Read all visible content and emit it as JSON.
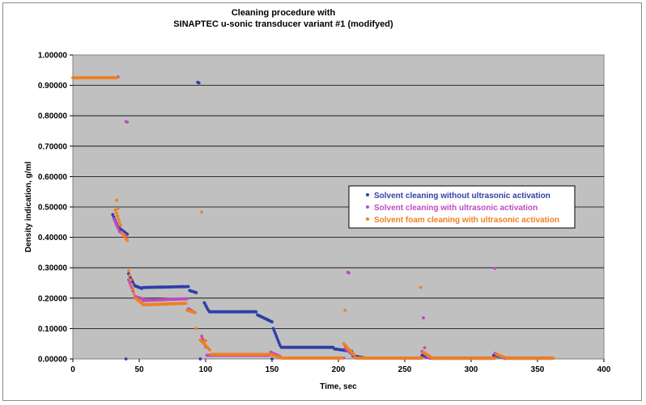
{
  "chart_data": {
    "type": "scatter",
    "title": [
      "Cleaning procedure with",
      "SINAPTEC u-sonic transducer variant #1 (modifyed)"
    ],
    "xlabel": "Time, sec",
    "ylabel": "Density indication, g/ml",
    "xlim": [
      0,
      400
    ],
    "ylim": [
      0,
      1
    ],
    "x_ticks": [
      "0",
      "50",
      "100",
      "150",
      "200",
      "250",
      "300",
      "350",
      "400"
    ],
    "y_ticks": [
      "0.00000",
      "0.10000",
      "0.20000",
      "0.30000",
      "0.40000",
      "0.50000",
      "0.60000",
      "0.70000",
      "0.80000",
      "0.90000",
      "1.00000"
    ],
    "grid": "horizontal",
    "plot_background": "#c0c0c0",
    "legend_position": "right",
    "series": [
      {
        "name": "Solvent cleaning without ultrasonic activation",
        "color": "#2e3fa8",
        "segments": [
          {
            "x0": 30,
            "x1": 34,
            "y0": 0.475,
            "y1": 0.435
          },
          {
            "x0": 35,
            "x1": 41,
            "y0": 0.43,
            "y1": 0.41
          },
          {
            "x0": 42,
            "x1": 46,
            "y0": 0.28,
            "y1": 0.245
          },
          {
            "x0": 47,
            "x1": 52,
            "y0": 0.24,
            "y1": 0.232
          },
          {
            "x0": 53,
            "x1": 87,
            "y0": 0.235,
            "y1": 0.238
          },
          {
            "x0": 88,
            "x1": 93,
            "y0": 0.225,
            "y1": 0.218
          },
          {
            "x0": 99,
            "x1": 102,
            "y0": 0.185,
            "y1": 0.16
          },
          {
            "x0": 103,
            "x1": 138,
            "y0": 0.155,
            "y1": 0.155
          },
          {
            "x0": 139,
            "x1": 150,
            "y0": 0.145,
            "y1": 0.122
          },
          {
            "x0": 151,
            "x1": 156,
            "y0": 0.1,
            "y1": 0.045
          },
          {
            "x0": 157,
            "x1": 196,
            "y0": 0.038,
            "y1": 0.038
          },
          {
            "x0": 197,
            "x1": 210,
            "y0": 0.033,
            "y1": 0.025
          },
          {
            "x0": 211,
            "x1": 220,
            "y0": 0.01,
            "y1": 0.003
          },
          {
            "x0": 221,
            "x1": 262,
            "y0": 0.003,
            "y1": 0.003
          },
          {
            "x0": 263,
            "x1": 269,
            "y0": 0.012,
            "y1": 0.003
          },
          {
            "x0": 270,
            "x1": 316,
            "y0": 0.002,
            "y1": 0.002
          },
          {
            "x0": 317,
            "x1": 325,
            "y0": 0.012,
            "y1": 0.004
          },
          {
            "x0": 326,
            "x1": 360,
            "y0": 0.002,
            "y1": 0.002
          }
        ],
        "points": [
          [
            94,
            0.91
          ],
          [
            95,
            0.908
          ],
          [
            40,
            0.0
          ],
          [
            96,
            0.0
          ],
          [
            150,
            0.0
          ]
        ]
      },
      {
        "name": "Solvent cleaning with ultrasonic activation",
        "color": "#c04ac0",
        "segments": [
          {
            "x0": 31,
            "x1": 34,
            "y0": 0.46,
            "y1": 0.43
          },
          {
            "x0": 35,
            "x1": 40,
            "y0": 0.42,
            "y1": 0.405
          },
          {
            "x0": 42,
            "x1": 46,
            "y0": 0.26,
            "y1": 0.215
          },
          {
            "x0": 47,
            "x1": 52,
            "y0": 0.205,
            "y1": 0.198
          },
          {
            "x0": 53,
            "x1": 86,
            "y0": 0.192,
            "y1": 0.198
          },
          {
            "x0": 87,
            "x1": 92,
            "y0": 0.165,
            "y1": 0.152
          },
          {
            "x0": 97,
            "x1": 100,
            "y0": 0.075,
            "y1": 0.04
          },
          {
            "x0": 101,
            "x1": 148,
            "y0": 0.012,
            "y1": 0.012
          },
          {
            "x0": 149,
            "x1": 156,
            "y0": 0.022,
            "y1": 0.008
          },
          {
            "x0": 157,
            "x1": 204,
            "y0": 0.003,
            "y1": 0.003
          },
          {
            "x0": 205,
            "x1": 212,
            "y0": 0.035,
            "y1": 0.01
          },
          {
            "x0": 213,
            "x1": 262,
            "y0": 0.003,
            "y1": 0.003
          },
          {
            "x0": 263,
            "x1": 268,
            "y0": 0.025,
            "y1": 0.005
          },
          {
            "x0": 269,
            "x1": 317,
            "y0": 0.002,
            "y1": 0.002
          },
          {
            "x0": 318,
            "x1": 324,
            "y0": 0.018,
            "y1": 0.004
          },
          {
            "x0": 325,
            "x1": 360,
            "y0": 0.002,
            "y1": 0.002
          }
        ],
        "points": [
          [
            34,
            0.928
          ],
          [
            40,
            0.781
          ],
          [
            41,
            0.779
          ],
          [
            207,
            0.285
          ],
          [
            208,
            0.283
          ],
          [
            264,
            0.135
          ],
          [
            265,
            0.037
          ],
          [
            318,
            0.298
          ]
        ]
      },
      {
        "name": "Solvent foam cleaning with ultrasonic activation",
        "color": "#f07f20",
        "segments": [
          {
            "x0": 0,
            "x1": 33,
            "y0": 0.925,
            "y1": 0.925
          },
          {
            "x0": 32,
            "x1": 36,
            "y0": 0.49,
            "y1": 0.44
          },
          {
            "x0": 37,
            "x1": 41,
            "y0": 0.415,
            "y1": 0.39
          },
          {
            "x0": 42,
            "x1": 46,
            "y0": 0.29,
            "y1": 0.215
          },
          {
            "x0": 47,
            "x1": 52,
            "y0": 0.2,
            "y1": 0.183
          },
          {
            "x0": 53,
            "x1": 85,
            "y0": 0.178,
            "y1": 0.183
          },
          {
            "x0": 86,
            "x1": 92,
            "y0": 0.16,
            "y1": 0.152
          },
          {
            "x0": 96,
            "x1": 103,
            "y0": 0.063,
            "y1": 0.03
          },
          {
            "x0": 104,
            "x1": 148,
            "y0": 0.015,
            "y1": 0.015
          },
          {
            "x0": 149,
            "x1": 156,
            "y0": 0.015,
            "y1": 0.005
          },
          {
            "x0": 157,
            "x1": 203,
            "y0": 0.003,
            "y1": 0.003
          },
          {
            "x0": 204,
            "x1": 212,
            "y0": 0.05,
            "y1": 0.012
          },
          {
            "x0": 213,
            "x1": 263,
            "y0": 0.003,
            "y1": 0.003
          },
          {
            "x0": 264,
            "x1": 270,
            "y0": 0.022,
            "y1": 0.005
          },
          {
            "x0": 271,
            "x1": 318,
            "y0": 0.002,
            "y1": 0.002
          },
          {
            "x0": 319,
            "x1": 326,
            "y0": 0.015,
            "y1": 0.004
          },
          {
            "x0": 327,
            "x1": 362,
            "y0": 0.002,
            "y1": 0.002
          }
        ],
        "points": [
          [
            33,
            0.522
          ],
          [
            34,
            0.495
          ],
          [
            97,
            0.483
          ],
          [
            205,
            0.16
          ],
          [
            262,
            0.235
          ],
          [
            93,
            0.1
          ],
          [
            100,
            0.06
          ]
        ]
      }
    ]
  }
}
